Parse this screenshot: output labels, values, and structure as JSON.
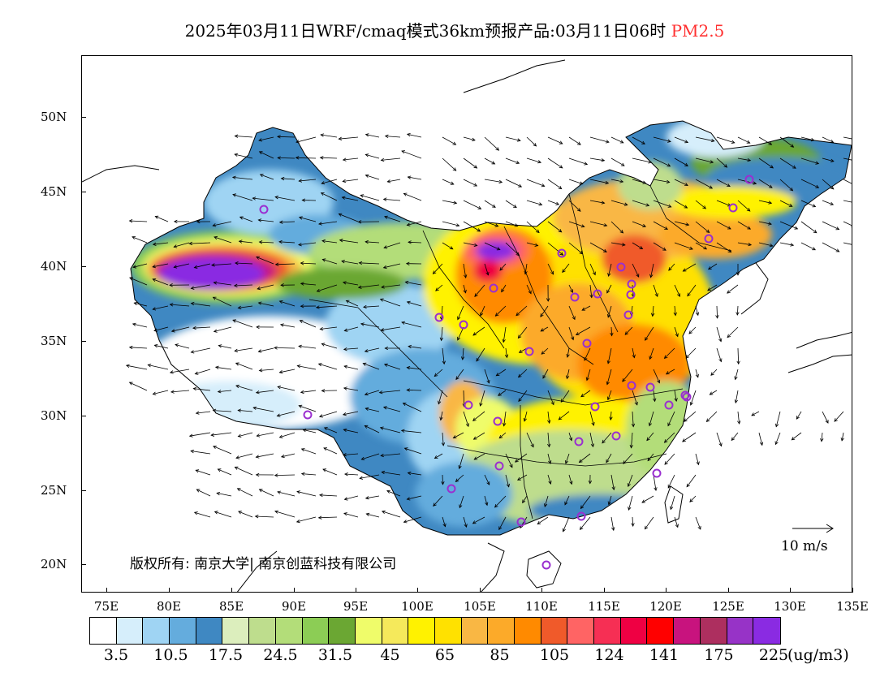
{
  "title": {
    "main": "2025年03月11日WRF/cmaq模式36km预报产品:03月11日06时",
    "species": "PM2.5"
  },
  "axes": {
    "lat_labels": [
      "50N",
      "45N",
      "40N",
      "35N",
      "30N",
      "25N",
      "20N"
    ],
    "lon_labels": [
      "75E",
      "80E",
      "85E",
      "90E",
      "95E",
      "100E",
      "105E",
      "110E",
      "115E",
      "120E",
      "125E",
      "130E",
      "135E"
    ]
  },
  "legend": {
    "colors": [
      "#ffffff",
      "#d6eefb",
      "#9fd4f3",
      "#64acdd",
      "#3f88c2",
      "#dceebd",
      "#bedd8d",
      "#b3dd79",
      "#8ccd55",
      "#6ba733",
      "#effc6a",
      "#f5e95b",
      "#fff200",
      "#ffe100",
      "#f9b744",
      "#fcaa29",
      "#ff8a00",
      "#f05a2a",
      "#ff6464",
      "#f62f54",
      "#ef0043",
      "#ff0000",
      "#c8137e",
      "#ad2f5f",
      "#9733c7",
      "#8a2be2"
    ],
    "labels": [
      "3.5",
      "10.5",
      "17.5",
      "24.5",
      "31.5",
      "45",
      "65",
      "85",
      "105",
      "124",
      "141",
      "175",
      "225"
    ],
    "unit": "(ug/m3)"
  },
  "wind_scale_label": "10  m/s",
  "copyright": "版权所有: 南京大学| 南京创蓝科技有限公司",
  "stations_count": 33
}
